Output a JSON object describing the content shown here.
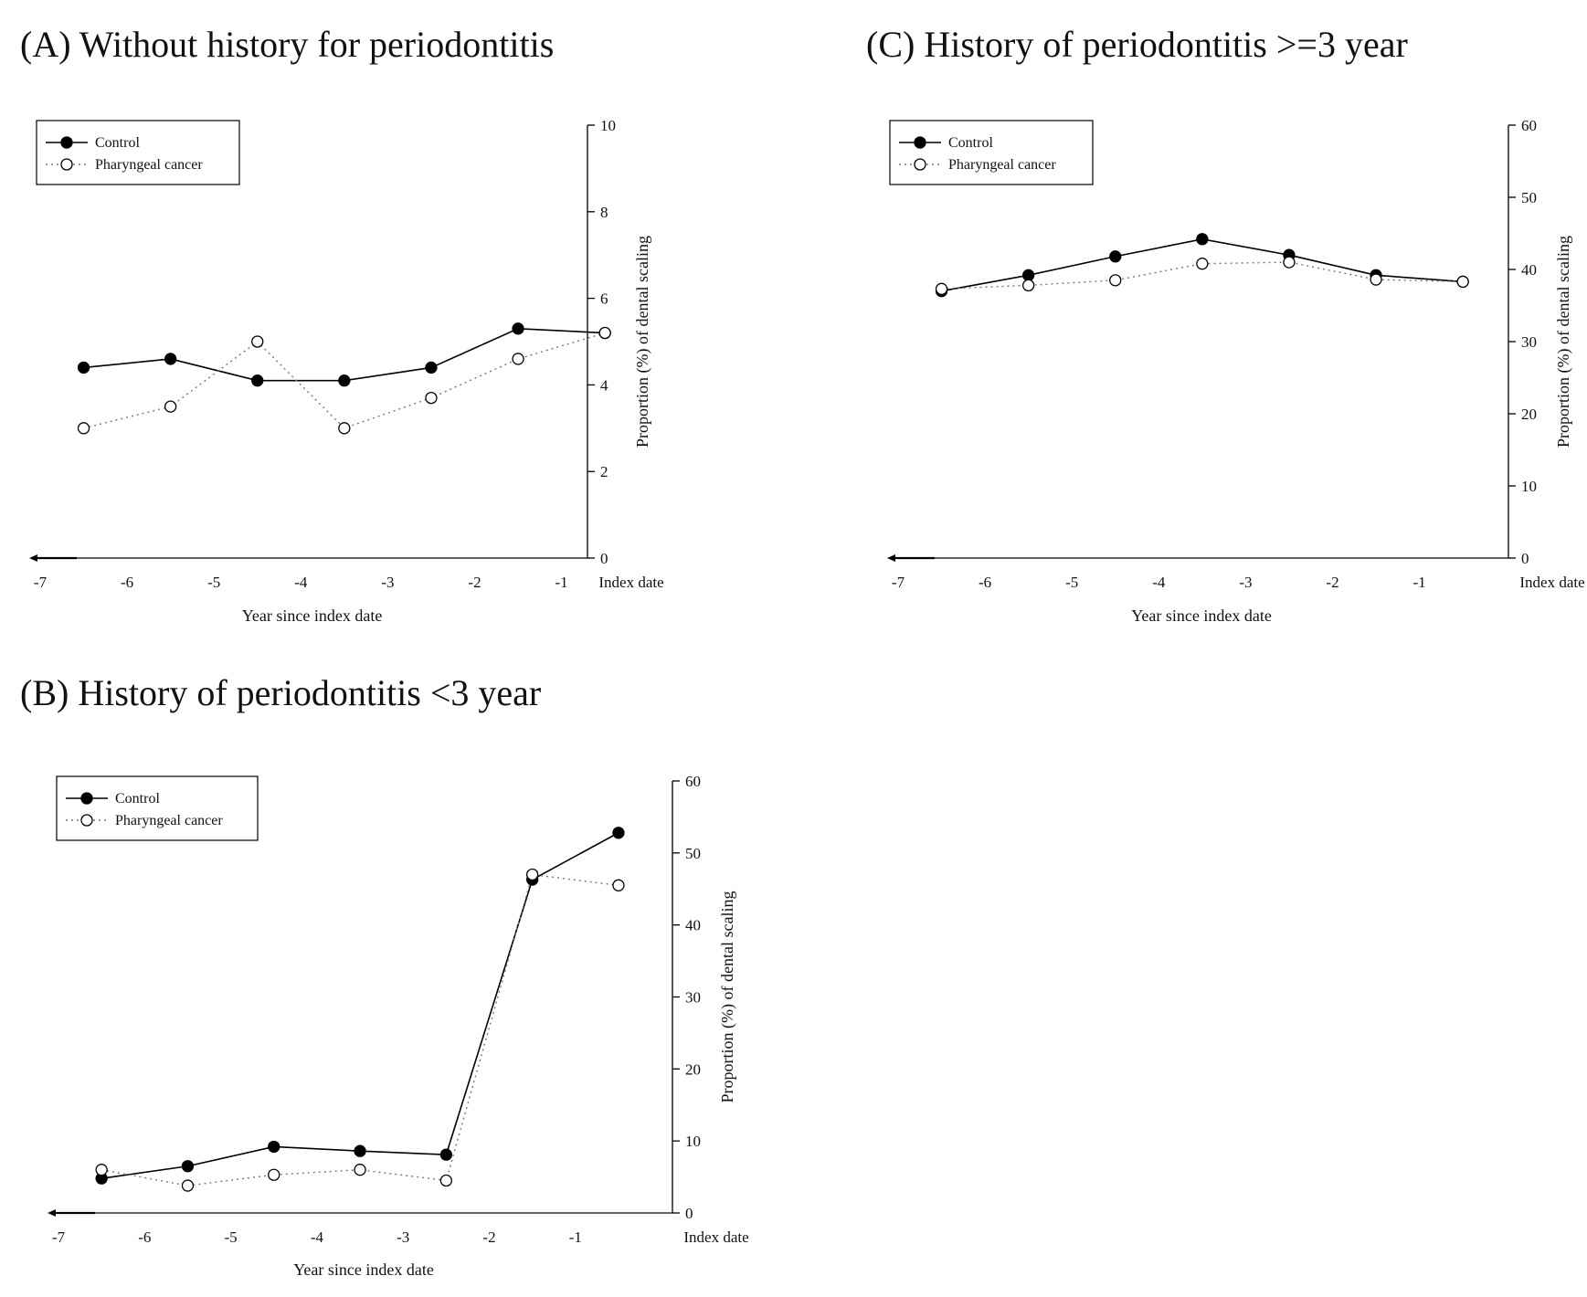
{
  "chart_data": [
    {
      "id": "A",
      "type": "line",
      "title": "(A) Without history for periodontitis",
      "xlabel": "Year since index date",
      "ylabel": "Proportion (%) of dental scaling",
      "x_ticks": [
        "-7",
        "-6",
        "-5",
        "-4",
        "-3",
        "-2",
        "-1",
        "Index date"
      ],
      "x": [
        -6.5,
        -5.5,
        -4.5,
        -3.5,
        -2.5,
        -1.5,
        -0.5
      ],
      "ylim": [
        0,
        10
      ],
      "y_ticks": [
        "0",
        "2",
        "4",
        "6",
        "8",
        "10"
      ],
      "legend_position": "top-left",
      "series": [
        {
          "name": "Control",
          "style": "solid-filled",
          "values": [
            4.4,
            4.6,
            4.1,
            4.1,
            4.4,
            5.3,
            5.2
          ]
        },
        {
          "name": "Pharyngeal cancer",
          "style": "dotted-open",
          "values": [
            3.0,
            3.5,
            5.0,
            3.0,
            3.7,
            4.6,
            5.2
          ]
        }
      ]
    },
    {
      "id": "C",
      "type": "line",
      "title": "(C) History of periodontitis >=3 year",
      "xlabel": "Year since index date",
      "ylabel": "Proportion (%) of dental scaling",
      "x_ticks": [
        "-7",
        "-6",
        "-5",
        "-4",
        "-3",
        "-2",
        "-1",
        "Index date"
      ],
      "x": [
        -6.5,
        -5.5,
        -4.5,
        -3.5,
        -2.5,
        -1.5,
        -0.5
      ],
      "ylim": [
        0,
        60
      ],
      "y_ticks": [
        "0",
        "10",
        "20",
        "30",
        "40",
        "50",
        "60"
      ],
      "legend_position": "top-left",
      "series": [
        {
          "name": "Control",
          "style": "solid-filled",
          "values": [
            37.0,
            39.2,
            41.8,
            44.2,
            42.0,
            39.2,
            38.3
          ]
        },
        {
          "name": "Pharyngeal cancer",
          "style": "dotted-open",
          "values": [
            37.3,
            37.8,
            38.5,
            40.8,
            41.0,
            38.6,
            38.3
          ]
        }
      ]
    },
    {
      "id": "B",
      "type": "line",
      "title": "(B) History of periodontitis <3 year",
      "xlabel": "Year since index date",
      "ylabel": "Proportion (%) of dental scaling",
      "x_ticks": [
        "-7",
        "-6",
        "-5",
        "-4",
        "-3",
        "-2",
        "-1",
        "Index date"
      ],
      "x": [
        -6.5,
        -5.5,
        -4.5,
        -3.5,
        -2.5,
        -1.5,
        -0.5
      ],
      "ylim": [
        0,
        60
      ],
      "y_ticks": [
        "0",
        "10",
        "20",
        "30",
        "40",
        "50",
        "60"
      ],
      "legend_position": "top-left",
      "series": [
        {
          "name": "Control",
          "style": "solid-filled",
          "values": [
            4.8,
            6.5,
            9.2,
            8.6,
            8.1,
            46.3,
            52.8
          ]
        },
        {
          "name": "Pharyngeal cancer",
          "style": "dotted-open",
          "values": [
            6.0,
            3.8,
            5.3,
            6.0,
            4.5,
            47.0,
            45.5
          ]
        }
      ]
    }
  ]
}
